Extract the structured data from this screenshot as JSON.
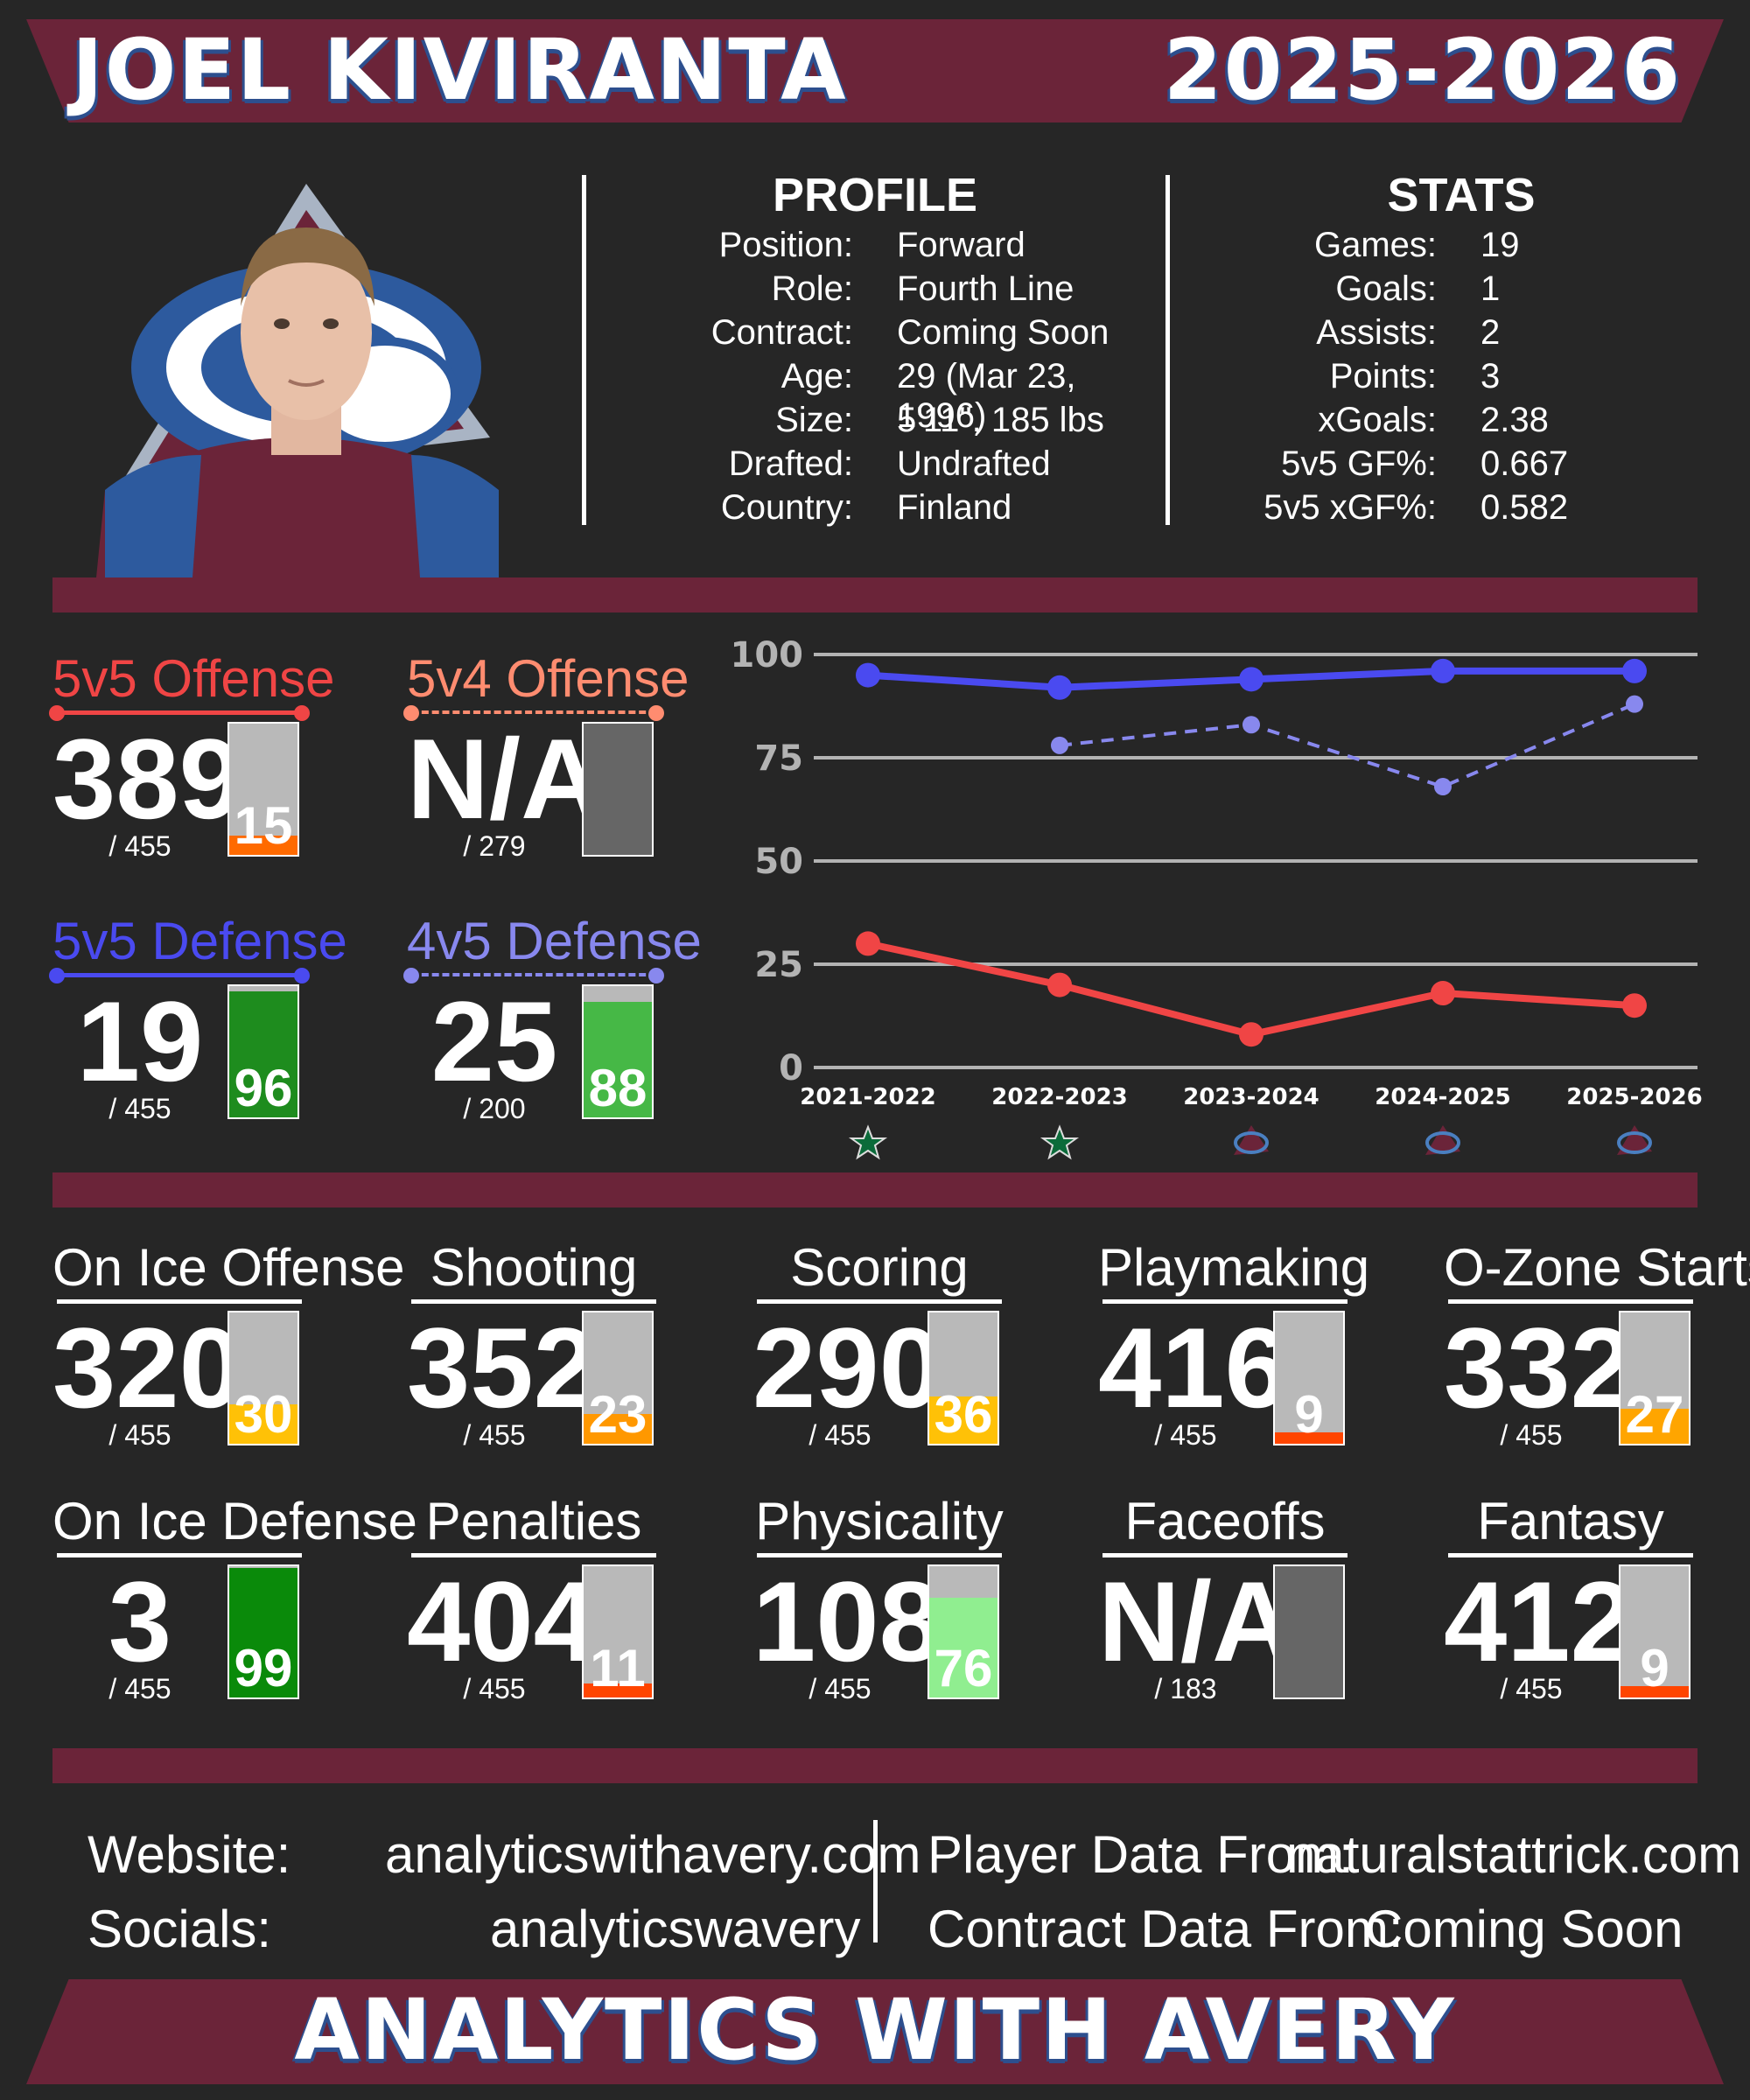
{
  "header": {
    "name": "JOEL KIVIRANTA",
    "season": "2025-2026"
  },
  "profile": {
    "title": "PROFILE",
    "rows": [
      {
        "label": "Position:",
        "value": "Forward"
      },
      {
        "label": "Role:",
        "value": "Fourth Line"
      },
      {
        "label": "Contract:",
        "value": "Coming Soon"
      },
      {
        "label": "Age:",
        "value": "29 (Mar 23, 1996)"
      },
      {
        "label": "Size:",
        "value": "5'11\", 185 lbs"
      },
      {
        "label": "Drafted:",
        "value": "Undrafted"
      },
      {
        "label": "Country:",
        "value": "Finland"
      }
    ]
  },
  "stats": {
    "title": "STATS",
    "rows": [
      {
        "label": "Games:",
        "value": "19"
      },
      {
        "label": "Goals:",
        "value": "1"
      },
      {
        "label": "Assists:",
        "value": "2"
      },
      {
        "label": "Points:",
        "value": "3"
      },
      {
        "label": "xGoals:",
        "value": "2.38"
      },
      {
        "label": "5v5 GF%:",
        "value": "0.667"
      },
      {
        "label": "5v5 xGF%:",
        "value": "0.582"
      }
    ]
  },
  "special_tiles": [
    {
      "title": "5v5 Offense",
      "rank": "389",
      "total": "/ 455",
      "pct": 15,
      "pct_label": "15",
      "color": "#f04545",
      "line": "solid",
      "fill": "#ff6a00"
    },
    {
      "title": "5v4 Offense",
      "rank": "N/A",
      "total": "/ 279",
      "pct": null,
      "pct_label": "",
      "color": "#ff8c70",
      "line": "dashed",
      "fill": "#666666"
    },
    {
      "title": "5v5 Defense",
      "rank": "19",
      "total": "/ 455",
      "pct": 96,
      "pct_label": "96",
      "color": "#4a4af0",
      "line": "solid",
      "fill": "#1e8c1e"
    },
    {
      "title": "4v5 Defense",
      "rank": "25",
      "total": "/ 200",
      "pct": 88,
      "pct_label": "88",
      "color": "#8888ee",
      "line": "dashed",
      "fill": "#46b846"
    }
  ],
  "chart_data": {
    "type": "line",
    "categories": [
      "2021-2022",
      "2022-2023",
      "2023-2024",
      "2024-2025",
      "2025-2026"
    ],
    "team_icons": [
      "stars-logo-icon",
      "stars-logo-icon",
      "avalanche-logo-icon",
      "avalanche-logo-icon",
      "avalanche-logo-icon"
    ],
    "ylim": [
      0,
      100
    ],
    "yticks": [
      "0",
      "25",
      "50",
      "75",
      "100"
    ],
    "grid": true,
    "series": [
      {
        "values": [
          95,
          92,
          94,
          96,
          96
        ],
        "color": "#4a4af0",
        "style": "solid"
      },
      {
        "values": [
          null,
          78,
          83,
          68,
          88
        ],
        "color": "#8888ee",
        "style": "dashed"
      },
      {
        "values": [
          30,
          20,
          8,
          18,
          15
        ],
        "color": "#f04545",
        "style": "solid"
      },
      {
        "values": [
          null,
          null,
          null,
          null,
          null
        ],
        "color": "#ff8c70",
        "style": "dashed"
      }
    ]
  },
  "grid_tiles": [
    {
      "title": "On Ice Offense",
      "rank": "320",
      "total": "/ 455",
      "pct": 30,
      "pct_label": "30",
      "fill": "#ffc107"
    },
    {
      "title": "Shooting",
      "rank": "352",
      "total": "/ 455",
      "pct": 23,
      "pct_label": "23",
      "fill": "#ff9800"
    },
    {
      "title": "Scoring",
      "rank": "290",
      "total": "/ 455",
      "pct": 36,
      "pct_label": "36",
      "fill": "#ffc107"
    },
    {
      "title": "Playmaking",
      "rank": "416",
      "total": "/ 455",
      "pct": 9,
      "pct_label": "9",
      "fill": "#ff4500"
    },
    {
      "title": "O-Zone Starts",
      "rank": "332",
      "total": "/ 455",
      "pct": 27,
      "pct_label": "27",
      "fill": "#ffa500"
    },
    {
      "title": "On Ice Defense",
      "rank": "3",
      "total": "/ 455",
      "pct": 99,
      "pct_label": "99",
      "fill": "#0a8a0a"
    },
    {
      "title": "Penalties",
      "rank": "404",
      "total": "/ 455",
      "pct": 11,
      "pct_label": "11",
      "fill": "#ff4500"
    },
    {
      "title": "Physicality",
      "rank": "108",
      "total": "/ 455",
      "pct": 76,
      "pct_label": "76",
      "fill": "#90ee90"
    },
    {
      "title": "Faceoffs",
      "rank": "N/A",
      "total": "/ 183",
      "pct": null,
      "pct_label": "",
      "fill": "#666666"
    },
    {
      "title": "Fantasy",
      "rank": "412",
      "total": "/ 455",
      "pct": 9,
      "pct_label": "9",
      "fill": "#ff4500"
    }
  ],
  "footer": {
    "website_label": "Website:",
    "website": "analyticswithavery.com",
    "socials_label": "Socials:",
    "socials": "analyticswavery",
    "player_label": "Player Data From:",
    "player_src": "naturalstattrick.com",
    "contract_label": "Contract Data From:",
    "contract_src": "Coming Soon",
    "brand": "ANALYTICS WITH AVERY"
  }
}
